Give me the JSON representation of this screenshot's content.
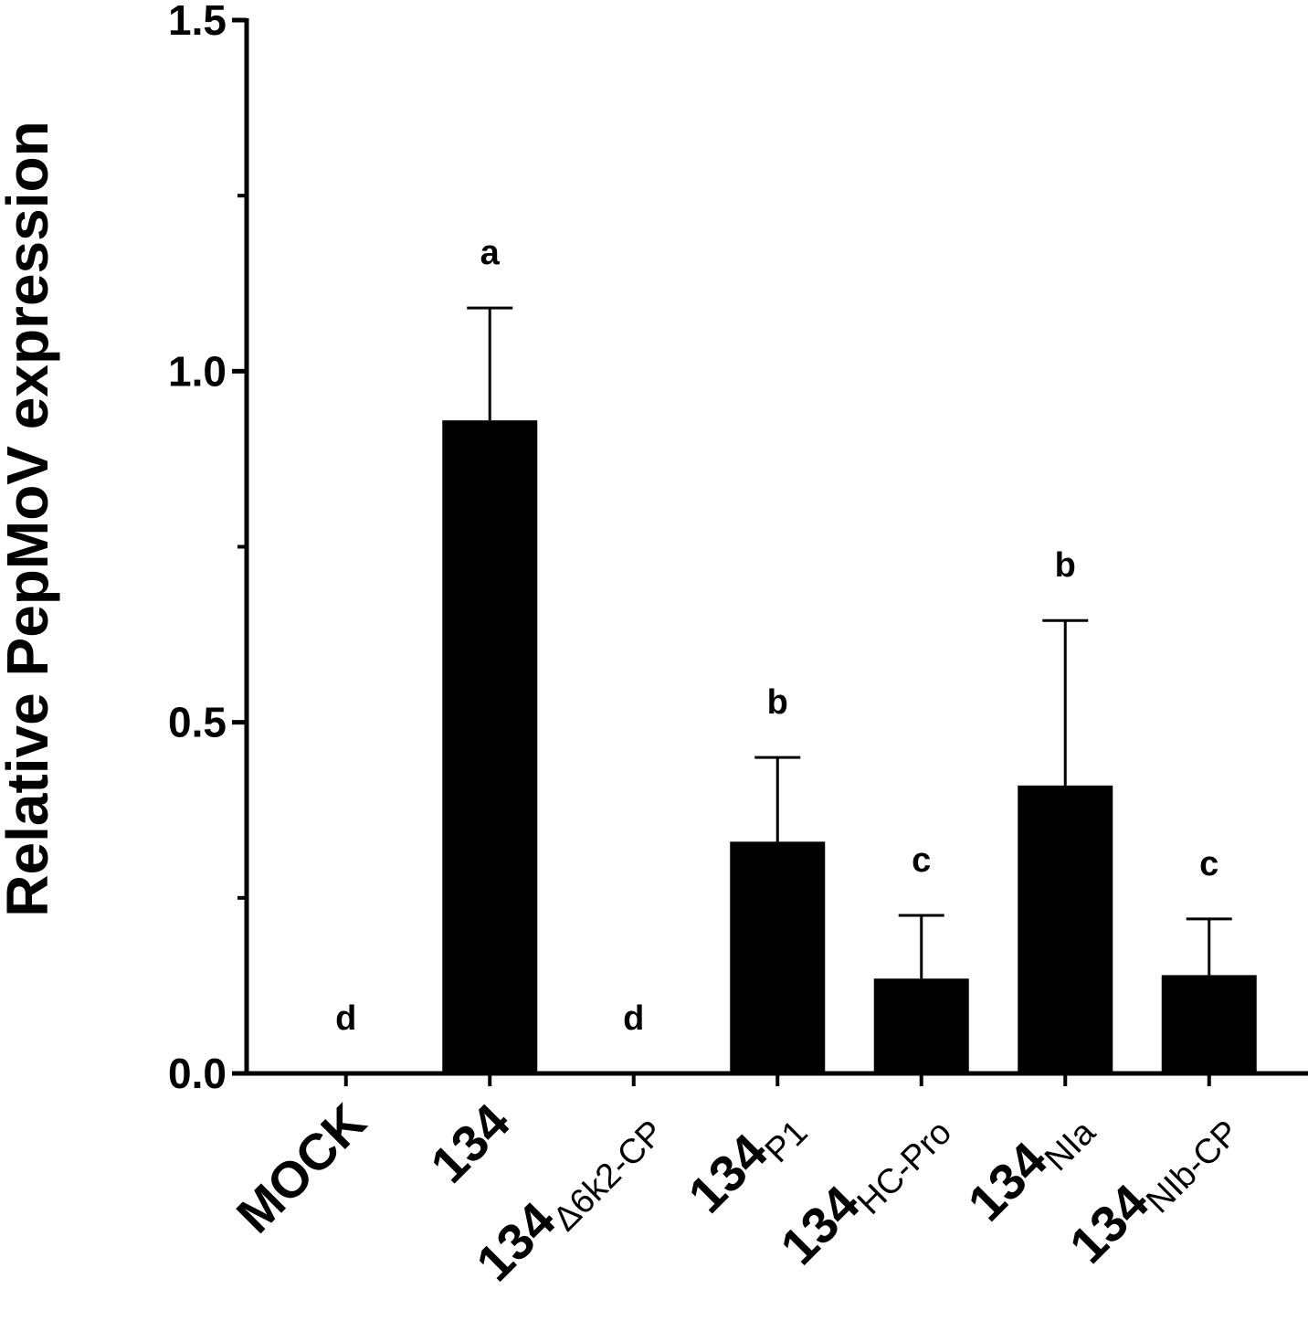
{
  "chart_data": {
    "type": "bar",
    "ylabel": "Relative PepMoV expression",
    "ylim": [
      0,
      1.5
    ],
    "yticks_major": [
      "0.0",
      "0.5",
      "1.0",
      "1.5"
    ],
    "yticks_minor": [
      0.25,
      0.75,
      1.25
    ],
    "grid": false,
    "legend": "none",
    "bar_color": "#000000",
    "categories": [
      {
        "main": "MOCK",
        "sub": ""
      },
      {
        "main": "134",
        "sub": ""
      },
      {
        "main": "134",
        "sub": "Δ6k2-CP"
      },
      {
        "main": "134",
        "sub": "P1"
      },
      {
        "main": "134",
        "sub": "HC-Pro"
      },
      {
        "main": "134",
        "sub": "NIa"
      },
      {
        "main": "134",
        "sub": "NIb-CP"
      }
    ],
    "values": [
      0.0,
      0.93,
      0.0,
      0.33,
      0.135,
      0.41,
      0.14
    ],
    "errors": [
      0.0,
      0.16,
      0.0,
      0.12,
      0.09,
      0.235,
      0.08
    ],
    "significance": [
      "d",
      "a",
      "d",
      "b",
      "c",
      "b",
      "c"
    ]
  }
}
